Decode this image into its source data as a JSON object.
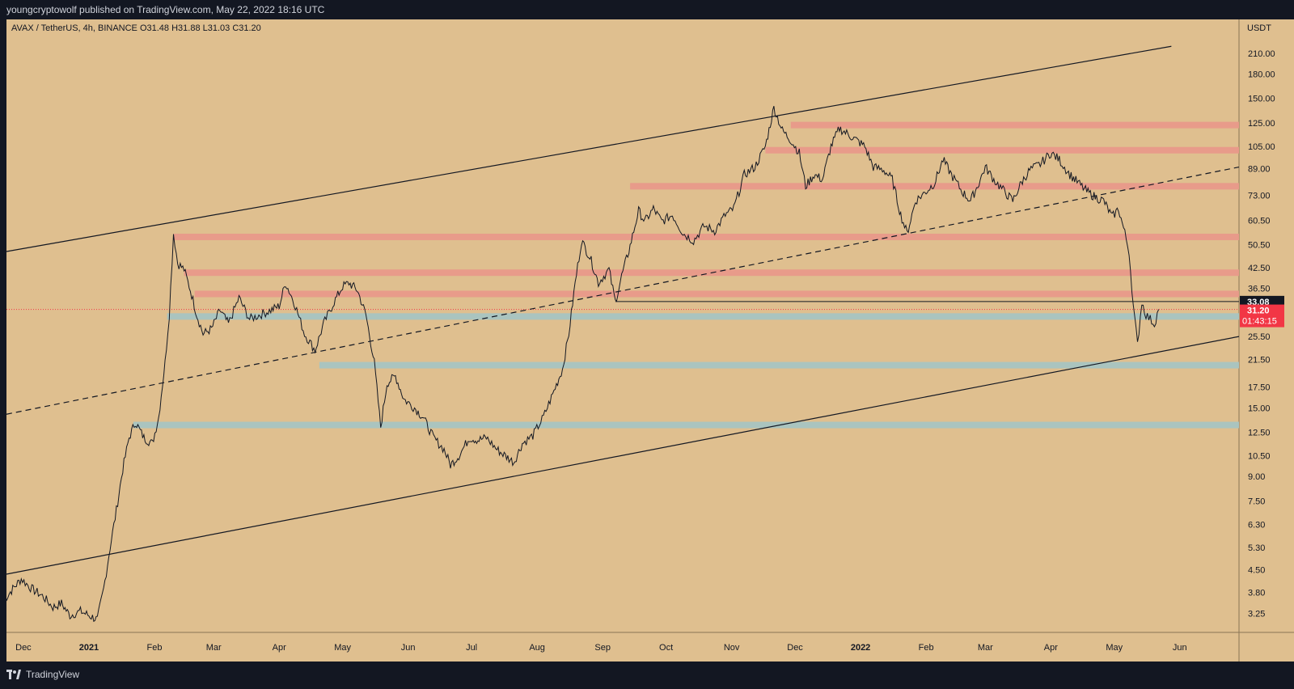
{
  "header": {
    "published_text": "youngcryptowolf published on TradingView.com, May 22, 2022 18:16 UTC"
  },
  "footer": {
    "brand": "TradingView"
  },
  "colors": {
    "background": "#131722",
    "plot_bg": "#dfbf8f",
    "axis_bg": "#dfbf8f",
    "resistance": "#e8998a",
    "support": "#a7c4c2",
    "price_label": "#f23645",
    "last_label": "#131722"
  },
  "chart_data": {
    "type": "candlestick",
    "symbol_line": "AVAX / TetherUS, 4h, BINANCE  O31.48  H31.88  L31.03  C31.20",
    "currency": "USDT",
    "scale": "log",
    "y_ticks": [
      "210.00",
      "180.00",
      "150.00",
      "125.00",
      "105.00",
      "89.00",
      "73.00",
      "60.50",
      "50.50",
      "42.50",
      "36.50",
      "25.50",
      "21.50",
      "17.50",
      "15.00",
      "12.50",
      "10.50",
      "9.00",
      "7.50",
      "6.30",
      "5.30",
      "4.50",
      "3.80",
      "3.25"
    ],
    "x_ticks": [
      "Dec",
      "2021",
      "Feb",
      "Mar",
      "Apr",
      "May",
      "Jun",
      "Jul",
      "Aug",
      "Sep",
      "Oct",
      "Nov",
      "Dec",
      "2022",
      "Feb",
      "Mar",
      "Apr",
      "May",
      "Jun"
    ],
    "last_value_label": "33.08",
    "current_price_label": "31.20",
    "countdown_label": "01:43:15",
    "price_path": [
      [
        "2020-11-22",
        3.6
      ],
      [
        "2020-11-26",
        3.9
      ],
      [
        "2020-11-30",
        4.2
      ],
      [
        "2020-12-05",
        3.9
      ],
      [
        "2020-12-10",
        3.7
      ],
      [
        "2020-12-15",
        3.4
      ],
      [
        "2020-12-19",
        3.5
      ],
      [
        "2020-12-23",
        3.2
      ],
      [
        "2020-12-28",
        3.3
      ],
      [
        "2021-01-01",
        3.2
      ],
      [
        "2021-01-05",
        3.1
      ],
      [
        "2021-01-08",
        3.9
      ],
      [
        "2021-01-11",
        5.3
      ],
      [
        "2021-01-14",
        7.0
      ],
      [
        "2021-01-17",
        9.5
      ],
      [
        "2021-01-20",
        12.0
      ],
      [
        "2021-01-23",
        13.5
      ],
      [
        "2021-01-27",
        12.0
      ],
      [
        "2021-01-31",
        11.5
      ],
      [
        "2021-02-03",
        14.0
      ],
      [
        "2021-02-06",
        21.0
      ],
      [
        "2021-02-08",
        30.0
      ],
      [
        "2021-02-10",
        55.0
      ],
      [
        "2021-02-12",
        44.0
      ],
      [
        "2021-02-15",
        42.0
      ],
      [
        "2021-02-18",
        36.0
      ],
      [
        "2021-02-21",
        30.0
      ],
      [
        "2021-02-24",
        26.0
      ],
      [
        "2021-02-28",
        27.0
      ],
      [
        "2021-03-04",
        31.0
      ],
      [
        "2021-03-08",
        28.0
      ],
      [
        "2021-03-13",
        34.0
      ],
      [
        "2021-03-18",
        29.0
      ],
      [
        "2021-03-23",
        30.0
      ],
      [
        "2021-03-28",
        31.0
      ],
      [
        "2021-04-01",
        32.0
      ],
      [
        "2021-04-04",
        38.0
      ],
      [
        "2021-04-08",
        33.0
      ],
      [
        "2021-04-13",
        26.0
      ],
      [
        "2021-04-18",
        23.0
      ],
      [
        "2021-04-22",
        28.0
      ],
      [
        "2021-04-27",
        33.0
      ],
      [
        "2021-05-01",
        37.0
      ],
      [
        "2021-05-04",
        38.0
      ],
      [
        "2021-05-08",
        36.0
      ],
      [
        "2021-05-12",
        30.0
      ],
      [
        "2021-05-16",
        21.0
      ],
      [
        "2021-05-19",
        13.0
      ],
      [
        "2021-05-22",
        18.0
      ],
      [
        "2021-05-26",
        19.0
      ],
      [
        "2021-05-30",
        16.0
      ],
      [
        "2021-06-04",
        15.0
      ],
      [
        "2021-06-08",
        14.0
      ],
      [
        "2021-06-13",
        12.0
      ],
      [
        "2021-06-18",
        11.0
      ],
      [
        "2021-06-21",
        9.8
      ],
      [
        "2021-06-25",
        10.5
      ],
      [
        "2021-06-30",
        12.0
      ],
      [
        "2021-07-04",
        11.8
      ],
      [
        "2021-07-08",
        12.0
      ],
      [
        "2021-07-13",
        11.0
      ],
      [
        "2021-07-17",
        10.5
      ],
      [
        "2021-07-21",
        10.0
      ],
      [
        "2021-07-25",
        11.5
      ],
      [
        "2021-07-30",
        12.2
      ],
      [
        "2021-08-04",
        14.0
      ],
      [
        "2021-08-09",
        17.0
      ],
      [
        "2021-08-13",
        20.0
      ],
      [
        "2021-08-16",
        26.0
      ],
      [
        "2021-08-19",
        38.0
      ],
      [
        "2021-08-22",
        52.0
      ],
      [
        "2021-08-26",
        46.0
      ],
      [
        "2021-08-30",
        38.0
      ],
      [
        "2021-09-04",
        42.0
      ],
      [
        "2021-09-07",
        33.0
      ],
      [
        "2021-09-10",
        40.0
      ],
      [
        "2021-09-14",
        50.0
      ],
      [
        "2021-09-18",
        65.0
      ],
      [
        "2021-09-21",
        60.0
      ],
      [
        "2021-09-25",
        66.0
      ],
      [
        "2021-09-29",
        60.0
      ],
      [
        "2021-10-04",
        63.0
      ],
      [
        "2021-10-09",
        55.0
      ],
      [
        "2021-10-14",
        52.0
      ],
      [
        "2021-10-19",
        58.0
      ],
      [
        "2021-10-24",
        56.0
      ],
      [
        "2021-10-29",
        63.0
      ],
      [
        "2021-11-02",
        66.0
      ],
      [
        "2021-11-07",
        85.0
      ],
      [
        "2021-11-12",
        90.0
      ],
      [
        "2021-11-17",
        105.0
      ],
      [
        "2021-11-21",
        140.0
      ],
      [
        "2021-11-25",
        118.0
      ],
      [
        "2021-11-29",
        110.0
      ],
      [
        "2021-12-03",
        100.0
      ],
      [
        "2021-12-06",
        78.0
      ],
      [
        "2021-12-10",
        85.0
      ],
      [
        "2021-12-14",
        82.0
      ],
      [
        "2021-12-18",
        105.0
      ],
      [
        "2021-12-22",
        120.0
      ],
      [
        "2021-12-26",
        115.0
      ],
      [
        "2021-12-30",
        110.0
      ],
      [
        "2022-01-03",
        105.0
      ],
      [
        "2022-01-07",
        90.0
      ],
      [
        "2022-01-12",
        88.0
      ],
      [
        "2022-01-16",
        82.0
      ],
      [
        "2022-01-20",
        63.0
      ],
      [
        "2022-01-23",
        55.0
      ],
      [
        "2022-01-27",
        70.0
      ],
      [
        "2022-02-01",
        75.0
      ],
      [
        "2022-02-05",
        80.0
      ],
      [
        "2022-02-09",
        95.0
      ],
      [
        "2022-02-13",
        85.0
      ],
      [
        "2022-02-18",
        75.0
      ],
      [
        "2022-02-22",
        70.0
      ],
      [
        "2022-02-26",
        80.0
      ],
      [
        "2022-03-01",
        90.0
      ],
      [
        "2022-03-05",
        82.0
      ],
      [
        "2022-03-10",
        75.0
      ],
      [
        "2022-03-14",
        70.0
      ],
      [
        "2022-03-18",
        80.0
      ],
      [
        "2022-03-22",
        88.0
      ],
      [
        "2022-03-27",
        92.0
      ],
      [
        "2022-04-01",
        100.0
      ],
      [
        "2022-04-05",
        95.0
      ],
      [
        "2022-04-10",
        85.0
      ],
      [
        "2022-04-14",
        80.0
      ],
      [
        "2022-04-18",
        75.0
      ],
      [
        "2022-04-22",
        72.0
      ],
      [
        "2022-04-26",
        70.0
      ],
      [
        "2022-04-30",
        62.0
      ],
      [
        "2022-05-03",
        66.0
      ],
      [
        "2022-05-06",
        55.0
      ],
      [
        "2022-05-08",
        48.0
      ],
      [
        "2022-05-10",
        32.0
      ],
      [
        "2022-05-12",
        24.0
      ],
      [
        "2022-05-14",
        33.0
      ],
      [
        "2022-05-16",
        30.0
      ],
      [
        "2022-05-18",
        29.0
      ],
      [
        "2022-05-20",
        28.0
      ],
      [
        "2022-05-22",
        31.2
      ]
    ],
    "horizontal_zones": [
      {
        "kind": "resistance",
        "price": 123,
        "from": "2021-11-29",
        "to": "2022-06-29"
      },
      {
        "kind": "resistance",
        "price": 102,
        "from": "2021-11-17",
        "to": "2022-06-29"
      },
      {
        "kind": "resistance",
        "price": 78,
        "from": "2021-09-14",
        "to": "2022-06-29"
      },
      {
        "kind": "resistance",
        "price": 53.5,
        "from": "2021-02-10",
        "to": "2022-06-29"
      },
      {
        "kind": "resistance",
        "price": 41,
        "from": "2021-02-15",
        "to": "2022-06-29"
      },
      {
        "kind": "resistance",
        "price": 35,
        "from": "2021-02-20",
        "to": "2022-06-29"
      },
      {
        "kind": "support",
        "price": 29.6,
        "from": "2021-02-07",
        "to": "2022-06-29"
      },
      {
        "kind": "support",
        "price": 20.6,
        "from": "2021-04-20",
        "to": "2022-06-29"
      },
      {
        "kind": "support",
        "price": 13.2,
        "from": "2021-01-22",
        "to": "2022-06-29"
      }
    ],
    "trend_lines": [
      {
        "style": "solid",
        "from": [
          "2020-11-23",
          48
        ],
        "to": [
          "2022-05-28",
          221
        ]
      },
      {
        "style": "solid",
        "from": [
          "2020-11-23",
          4.35
        ],
        "to": [
          "2022-06-29",
          25.5
        ]
      },
      {
        "style": "dashed",
        "from": [
          "2020-11-23",
          14.3
        ],
        "to": [
          "2022-06-29",
          90
        ]
      }
    ],
    "horizontal_lines": [
      {
        "price": 33.08,
        "from": "2021-09-07",
        "to": "2022-06-29"
      }
    ]
  }
}
